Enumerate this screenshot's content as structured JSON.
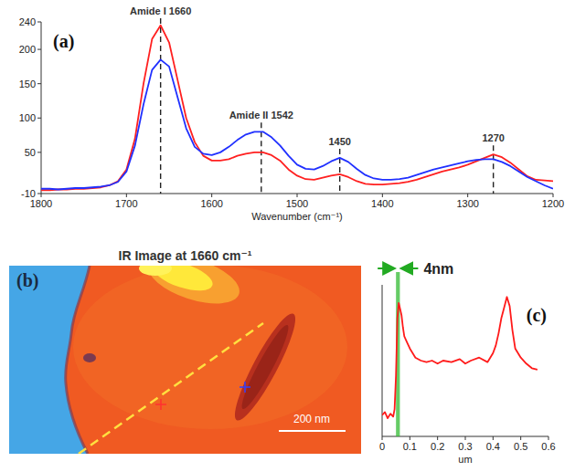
{
  "chart_data": [
    {
      "type": "line",
      "panel": "(a)",
      "xlabel": "Wavenumber (cm⁻¹)",
      "x": [
        1800,
        1790,
        1780,
        1770,
        1760,
        1750,
        1740,
        1730,
        1720,
        1710,
        1700,
        1690,
        1680,
        1670,
        1660,
        1650,
        1640,
        1630,
        1620,
        1610,
        1600,
        1590,
        1580,
        1570,
        1560,
        1550,
        1540,
        1530,
        1520,
        1510,
        1500,
        1490,
        1480,
        1470,
        1460,
        1450,
        1440,
        1430,
        1420,
        1410,
        1400,
        1390,
        1380,
        1370,
        1360,
        1350,
        1340,
        1330,
        1320,
        1310,
        1300,
        1290,
        1280,
        1270,
        1260,
        1250,
        1240,
        1230,
        1220,
        1210,
        1200
      ],
      "xlim": [
        1800,
        1200
      ],
      "xticks": [
        1800,
        1700,
        1600,
        1500,
        1400,
        1300,
        1200
      ],
      "ylim": [
        -10,
        240
      ],
      "yticks": [
        -10,
        50,
        100,
        150,
        200,
        240
      ],
      "series": [
        {
          "color": "#ff2020",
          "values": [
            -5,
            -5,
            -4,
            -4,
            -3,
            -3,
            -2,
            -1,
            2,
            8,
            25,
            70,
            150,
            215,
            235,
            210,
            155,
            100,
            65,
            45,
            38,
            38,
            40,
            45,
            48,
            50,
            50,
            46,
            38,
            25,
            16,
            11,
            10,
            13,
            16,
            18,
            14,
            8,
            4,
            3,
            3,
            4,
            5,
            7,
            10,
            14,
            18,
            22,
            25,
            28,
            32,
            37,
            42,
            47,
            43,
            35,
            25,
            15,
            10,
            9,
            8
          ]
        },
        {
          "color": "#2030ff",
          "values": [
            -3,
            -3,
            -4,
            -3,
            -2,
            -2,
            -1,
            0,
            2,
            7,
            22,
            60,
            120,
            170,
            185,
            175,
            130,
            85,
            58,
            48,
            46,
            50,
            58,
            68,
            76,
            80,
            80,
            72,
            60,
            45,
            32,
            26,
            25,
            30,
            37,
            42,
            36,
            26,
            17,
            12,
            10,
            10,
            11,
            13,
            17,
            21,
            25,
            28,
            31,
            34,
            37,
            39,
            40,
            40,
            36,
            30,
            22,
            14,
            8,
            2,
            -3
          ]
        }
      ],
      "annotations": [
        {
          "text": "Amide I 1660",
          "x": 1660
        },
        {
          "text": "Amide II 1542",
          "x": 1542
        },
        {
          "text": "1450",
          "x": 1450
        },
        {
          "text": "1270",
          "x": 1270
        }
      ]
    },
    {
      "type": "line",
      "panel": "(c)",
      "xlabel": "um",
      "x": [
        0,
        0.01,
        0.02,
        0.03,
        0.04,
        0.045,
        0.05,
        0.055,
        0.06,
        0.065,
        0.07,
        0.075,
        0.08,
        0.09,
        0.1,
        0.11,
        0.12,
        0.14,
        0.16,
        0.18,
        0.2,
        0.22,
        0.25,
        0.28,
        0.3,
        0.32,
        0.35,
        0.38,
        0.4,
        0.41,
        0.42,
        0.43,
        0.44,
        0.45,
        0.46,
        0.47,
        0.48,
        0.5,
        0.52,
        0.54,
        0.56
      ],
      "xlim": [
        0,
        0.6
      ],
      "xticks": [
        0,
        0.1,
        0.2,
        0.3,
        0.4,
        0.5,
        0.6
      ],
      "ylim": [
        0,
        100
      ],
      "tick_labels": "x",
      "series": [
        {
          "color": "#ff1a1a",
          "values": [
            14,
            16,
            12,
            15,
            13,
            18,
            40,
            78,
            88,
            84,
            80,
            72,
            66,
            62,
            58,
            55,
            52,
            50,
            49,
            50,
            48,
            50,
            49,
            51,
            48,
            50,
            52,
            49,
            55,
            60,
            68,
            78,
            85,
            92,
            86,
            70,
            58,
            52,
            48,
            45,
            44
          ]
        }
      ],
      "annotations": [
        {
          "text": "4nm",
          "x": [
            0.05,
            0.064
          ]
        }
      ]
    }
  ],
  "ir_image": {
    "letter": "(b)",
    "title": "IR Image at 1660 cm⁻¹",
    "scale_bar": "200 nm"
  }
}
